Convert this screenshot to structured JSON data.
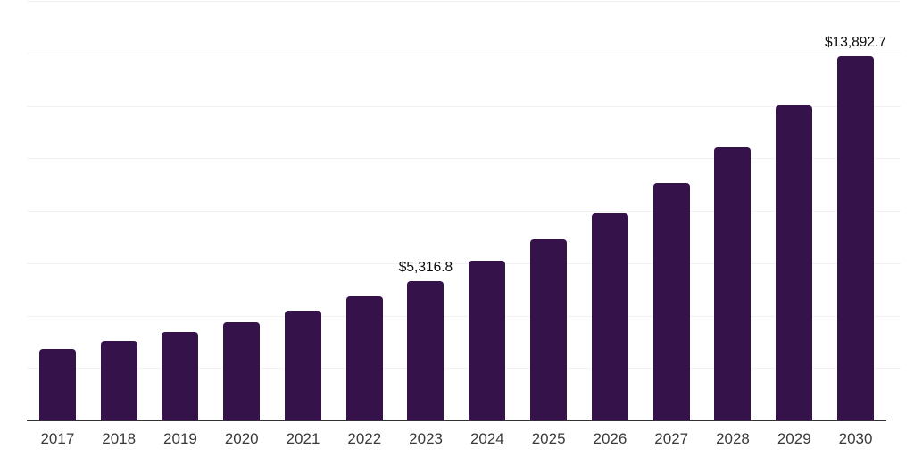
{
  "chart_data": {
    "type": "bar",
    "title": "",
    "xlabel": "",
    "ylabel": "",
    "categories": [
      "2017",
      "2018",
      "2019",
      "2020",
      "2021",
      "2022",
      "2023",
      "2024",
      "2025",
      "2026",
      "2027",
      "2028",
      "2029",
      "2030"
    ],
    "values": [
      2730,
      3030,
      3370,
      3760,
      4190,
      4720,
      5316.8,
      6090,
      6910,
      7890,
      9060,
      10420,
      12030,
      13892.7
    ],
    "value_labels": [
      null,
      null,
      null,
      null,
      null,
      null,
      "$5,316.8",
      null,
      null,
      null,
      null,
      null,
      null,
      "$13,892.7"
    ],
    "ylim": [
      0,
      16000
    ],
    "grid_interval": 2000,
    "grid": "horizontal gridlines only, no y-axis tick labels",
    "legend_position": "none",
    "colors": {
      "bar": "#36124b",
      "gridline": "#f2f2f2",
      "axis_line": "#333333",
      "value_label": "#0a0a0a",
      "tick_label": "#3a3a3a",
      "background": "#ffffff"
    }
  }
}
